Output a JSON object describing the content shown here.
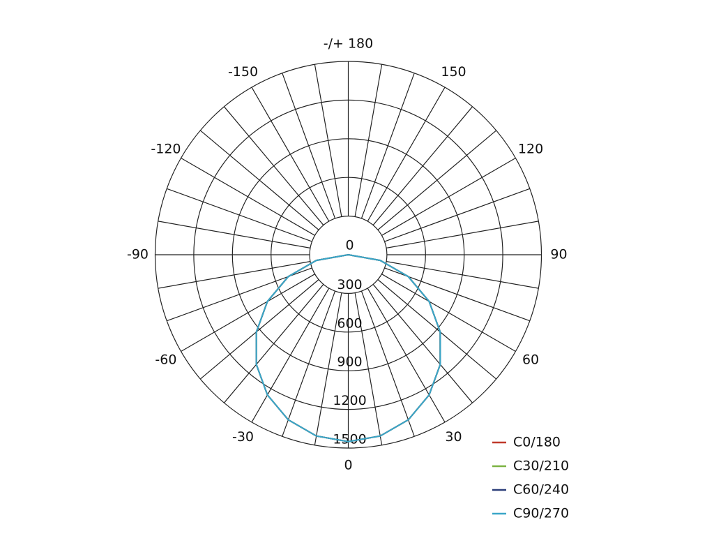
{
  "chart_data": {
    "type": "polar",
    "x": [
      -90,
      -80,
      -70,
      -60,
      -50,
      -40,
      -30,
      -20,
      -10,
      0,
      10,
      20,
      30,
      40,
      50,
      60,
      70,
      80,
      90
    ],
    "series": [
      {
        "name": "C0/180",
        "color": "#c0392b",
        "values": [
          0,
          252,
          496,
          725,
          932,
          1111,
          1256,
          1363,
          1428,
          1450,
          1428,
          1363,
          1256,
          1111,
          932,
          725,
          496,
          252,
          0
        ]
      },
      {
        "name": "C30/210",
        "color": "#7cb342",
        "values": [
          0,
          252,
          496,
          725,
          932,
          1111,
          1256,
          1363,
          1428,
          1450,
          1428,
          1363,
          1256,
          1111,
          932,
          725,
          496,
          252,
          0
        ]
      },
      {
        "name": "C60/240",
        "color": "#2c3e7a",
        "values": [
          0,
          252,
          496,
          725,
          932,
          1111,
          1256,
          1363,
          1428,
          1450,
          1428,
          1363,
          1256,
          1111,
          932,
          725,
          496,
          252,
          0
        ]
      },
      {
        "name": "C90/270",
        "color": "#3aa6c8",
        "values": [
          0,
          252,
          496,
          725,
          932,
          1111,
          1256,
          1363,
          1428,
          1450,
          1428,
          1363,
          1256,
          1111,
          932,
          725,
          496,
          252,
          0
        ]
      }
    ],
    "rlim": [
      0,
      1500
    ],
    "rticks": [
      0,
      300,
      600,
      900,
      1200,
      1500
    ],
    "xticks": [
      {
        "value": 180,
        "label": "-/+ 180"
      },
      150,
      120,
      90,
      60,
      30,
      0,
      -30,
      -60,
      -90,
      -120,
      -150
    ]
  }
}
